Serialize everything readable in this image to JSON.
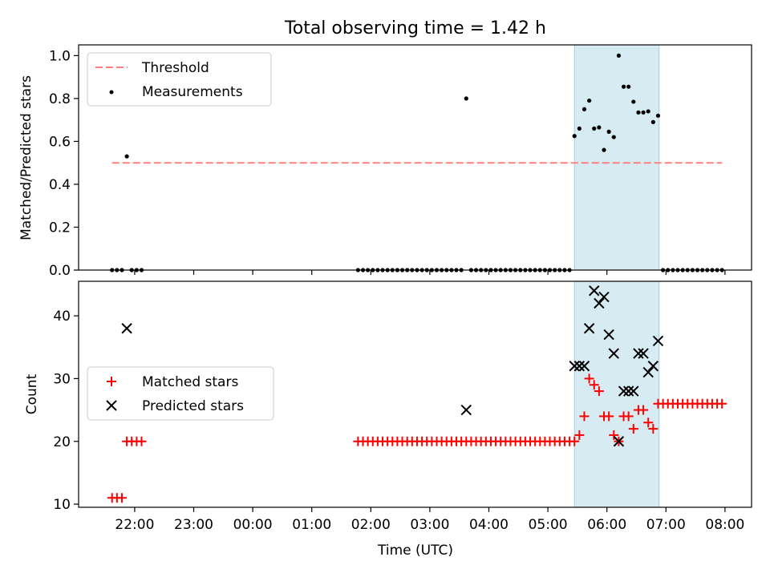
{
  "chart_data": [
    {
      "type": "scatter",
      "title": "Total observing time = 1.42 h",
      "ylabel": "Matched/Predicted stars",
      "xlabel": "",
      "ylim": [
        0,
        1.05
      ],
      "xlim": [
        "21:03",
        "08:27"
      ],
      "yticks": [
        0.0,
        0.2,
        0.4,
        0.6,
        0.8,
        1.0
      ],
      "ytick_labels": [
        "0.0",
        "0.2",
        "0.4",
        "0.6",
        "0.8",
        "1.0"
      ],
      "grid": false,
      "legend": "upper-left",
      "shaded_span": {
        "x": [
          "05:27",
          "06:53"
        ],
        "color": "#add8e6"
      },
      "series": [
        {
          "name": "Threshold",
          "kind": "dashed-line",
          "color": "#ff7f7f",
          "x": [
            "21:37",
            "07:57"
          ],
          "y": [
            0.5,
            0.5
          ]
        },
        {
          "name": "Measurements",
          "kind": "points",
          "color": "#000000",
          "x": [
            "21:37",
            "21:42",
            "21:47",
            "21:52",
            "21:57",
            "22:02",
            "22:07",
            "01:47",
            "01:52",
            "01:57",
            "02:02",
            "02:07",
            "02:12",
            "02:17",
            "02:22",
            "02:27",
            "02:32",
            "02:37",
            "02:42",
            "02:47",
            "02:52",
            "02:57",
            "03:02",
            "03:07",
            "03:12",
            "03:17",
            "03:22",
            "03:27",
            "03:32",
            "03:37",
            "03:42",
            "03:47",
            "03:52",
            "03:57",
            "04:02",
            "04:07",
            "04:12",
            "04:17",
            "04:22",
            "04:27",
            "04:32",
            "04:37",
            "04:42",
            "04:47",
            "04:52",
            "04:57",
            "05:02",
            "05:07",
            "05:12",
            "05:17",
            "05:22",
            "05:27",
            "05:32",
            "05:37",
            "05:42",
            "05:47",
            "05:52",
            "05:57",
            "06:02",
            "06:07",
            "06:12",
            "06:17",
            "06:22",
            "06:27",
            "06:32",
            "06:37",
            "06:42",
            "06:47",
            "06:52",
            "06:57",
            "07:02",
            "07:07",
            "07:12",
            "07:17",
            "07:22",
            "07:27",
            "07:32",
            "07:37",
            "07:42",
            "07:47",
            "07:52",
            "07:57"
          ],
          "y": [
            0,
            0,
            0,
            0.53,
            0,
            0,
            0,
            0,
            0,
            0,
            0,
            0,
            0,
            0,
            0,
            0,
            0,
            0,
            0,
            0,
            0,
            0,
            0,
            0,
            0,
            0,
            0,
            0,
            0,
            0.8,
            0,
            0,
            0,
            0,
            0,
            0,
            0,
            0,
            0,
            0,
            0,
            0,
            0,
            0,
            0,
            0,
            0,
            0,
            0,
            0,
            0,
            0.625,
            0.66,
            0.75,
            0.79,
            0.66,
            0.665,
            0.56,
            0.645,
            0.62,
            1.0,
            0.855,
            0.855,
            0.785,
            0.735,
            0.735,
            0.74,
            0.69,
            0.72,
            0,
            0,
            0,
            0,
            0,
            0,
            0,
            0,
            0,
            0,
            0,
            0,
            0
          ]
        }
      ]
    },
    {
      "type": "scatter",
      "title": "",
      "ylabel": "Count",
      "xlabel": "Time (UTC)",
      "ylim": [
        9.5,
        45.5
      ],
      "xlim": [
        "21:03",
        "08:27"
      ],
      "yticks": [
        10,
        20,
        30,
        40
      ],
      "ytick_labels": [
        "10",
        "20",
        "30",
        "40"
      ],
      "xticks": [
        "22:00",
        "23:00",
        "00:00",
        "01:00",
        "02:00",
        "03:00",
        "04:00",
        "05:00",
        "06:00",
        "07:00",
        "08:00"
      ],
      "xtick_labels": [
        "22:00",
        "23:00",
        "00:00",
        "01:00",
        "02:00",
        "03:00",
        "04:00",
        "05:00",
        "06:00",
        "07:00",
        "08:00"
      ],
      "grid": false,
      "legend": "center-left",
      "shaded_span": {
        "x": [
          "05:27",
          "06:53"
        ],
        "color": "#add8e6"
      },
      "series": [
        {
          "name": "Matched stars",
          "marker": "+",
          "color": "#ff0000",
          "x": [
            "21:37",
            "21:42",
            "21:47",
            "21:52",
            "21:57",
            "22:02",
            "22:07",
            "01:47",
            "01:52",
            "01:57",
            "02:02",
            "02:07",
            "02:12",
            "02:17",
            "02:22",
            "02:27",
            "02:32",
            "02:37",
            "02:42",
            "02:47",
            "02:52",
            "02:57",
            "03:02",
            "03:07",
            "03:12",
            "03:17",
            "03:22",
            "03:27",
            "03:32",
            "03:37",
            "03:42",
            "03:47",
            "03:52",
            "03:57",
            "04:02",
            "04:07",
            "04:12",
            "04:17",
            "04:22",
            "04:27",
            "04:32",
            "04:37",
            "04:42",
            "04:47",
            "04:52",
            "04:57",
            "05:02",
            "05:07",
            "05:12",
            "05:17",
            "05:22",
            "05:27",
            "05:32",
            "05:37",
            "05:42",
            "05:47",
            "05:52",
            "05:57",
            "06:02",
            "06:07",
            "06:12",
            "06:17",
            "06:22",
            "06:27",
            "06:32",
            "06:37",
            "06:42",
            "06:47",
            "06:52",
            "06:57",
            "07:02",
            "07:07",
            "07:12",
            "07:17",
            "07:22",
            "07:27",
            "07:32",
            "07:37",
            "07:42",
            "07:47",
            "07:52",
            "07:57"
          ],
          "y": [
            11,
            11,
            11,
            20,
            20,
            20,
            20,
            20,
            20,
            20,
            20,
            20,
            20,
            20,
            20,
            20,
            20,
            20,
            20,
            20,
            20,
            20,
            20,
            20,
            20,
            20,
            20,
            20,
            20,
            20,
            20,
            20,
            20,
            20,
            20,
            20,
            20,
            20,
            20,
            20,
            20,
            20,
            20,
            20,
            20,
            20,
            20,
            20,
            20,
            20,
            20,
            20,
            21,
            24,
            30,
            29,
            28,
            24,
            24,
            21,
            20,
            24,
            24,
            22,
            25,
            25,
            23,
            22,
            26,
            26,
            26,
            26,
            26,
            26,
            26,
            26,
            26,
            26,
            26,
            26,
            26,
            26
          ]
        },
        {
          "name": "Predicted stars",
          "marker": "x",
          "color": "#000000",
          "x": [
            "21:52",
            "03:37",
            "05:27",
            "05:32",
            "05:37",
            "05:42",
            "05:47",
            "05:52",
            "05:57",
            "06:02",
            "06:07",
            "06:12",
            "06:17",
            "06:22",
            "06:27",
            "06:32",
            "06:37",
            "06:42",
            "06:47",
            "06:52"
          ],
          "y": [
            38,
            25,
            32,
            32,
            32,
            38,
            44,
            42,
            43,
            37,
            34,
            20,
            28,
            28,
            28,
            34,
            34,
            31,
            32,
            36
          ]
        }
      ]
    }
  ]
}
